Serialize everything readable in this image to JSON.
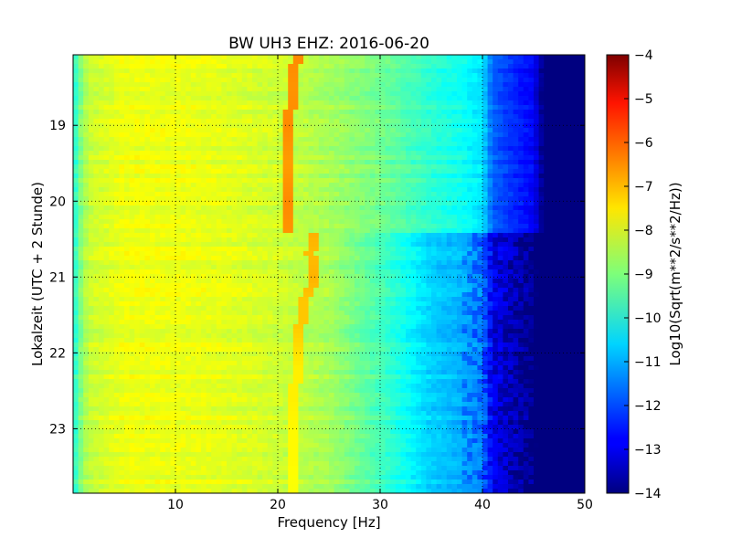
{
  "chart_data": {
    "type": "heatmap",
    "title": "BW UH3 EHZ: 2016-06-20",
    "xlabel": "Frequency [Hz]",
    "ylabel": "Lokalzeit (UTC + 2 Stunde)",
    "xlim": [
      0,
      50
    ],
    "ylim": [
      18.07,
      23.85
    ],
    "y_inverted": true,
    "x_ticks": [
      10,
      20,
      30,
      40,
      50
    ],
    "y_ticks": [
      19,
      20,
      21,
      22,
      23
    ],
    "grid": true,
    "colorscale": "jet",
    "colorbar": {
      "label": "Log10(Sqrt(m**2/s**2/Hz))",
      "range": [
        -14,
        -4
      ],
      "ticks": [
        -4,
        -5,
        -6,
        -7,
        -8,
        -9,
        -10,
        -11,
        -12,
        -13,
        -14
      ]
    },
    "level_profile_by_frequency": {
      "x": [
        0,
        0.5,
        1.5,
        5,
        10,
        15,
        20,
        25,
        30,
        35,
        38,
        40,
        41,
        43,
        45,
        46,
        50
      ],
      "values": [
        -10.2,
        -9.2,
        -8.3,
        -7.9,
        -7.9,
        -8.0,
        -8.2,
        -8.6,
        -9.1,
        -9.8,
        -10.1,
        -10.5,
        -11.8,
        -12.3,
        -12.8,
        -14,
        -14
      ]
    },
    "narrowband_line": {
      "time": [
        18.1,
        18.5,
        19.0,
        19.5,
        20.0,
        20.4,
        20.45,
        20.7,
        21.0,
        21.3,
        21.6,
        21.9,
        22.2,
        22.6,
        23.0,
        23.4,
        23.8
      ],
      "frequency_hz": [
        21.8,
        21.5,
        21.1,
        20.9,
        21.1,
        20.9,
        23.8,
        23.2,
        23.6,
        22.7,
        22.3,
        22.0,
        21.8,
        21.7,
        21.6,
        21.7,
        21.6
      ],
      "level": [
        -6.6,
        -6.7,
        -6.6,
        -6.8,
        -6.6,
        -6.7,
        -7.0,
        -7.1,
        -7.0,
        -7.2,
        -7.2,
        -7.4,
        -7.6,
        -7.6,
        -7.7,
        -7.7,
        -7.8
      ]
    },
    "level_shift": {
      "time": 20.43,
      "delta_above_25hz": -0.9
    }
  }
}
